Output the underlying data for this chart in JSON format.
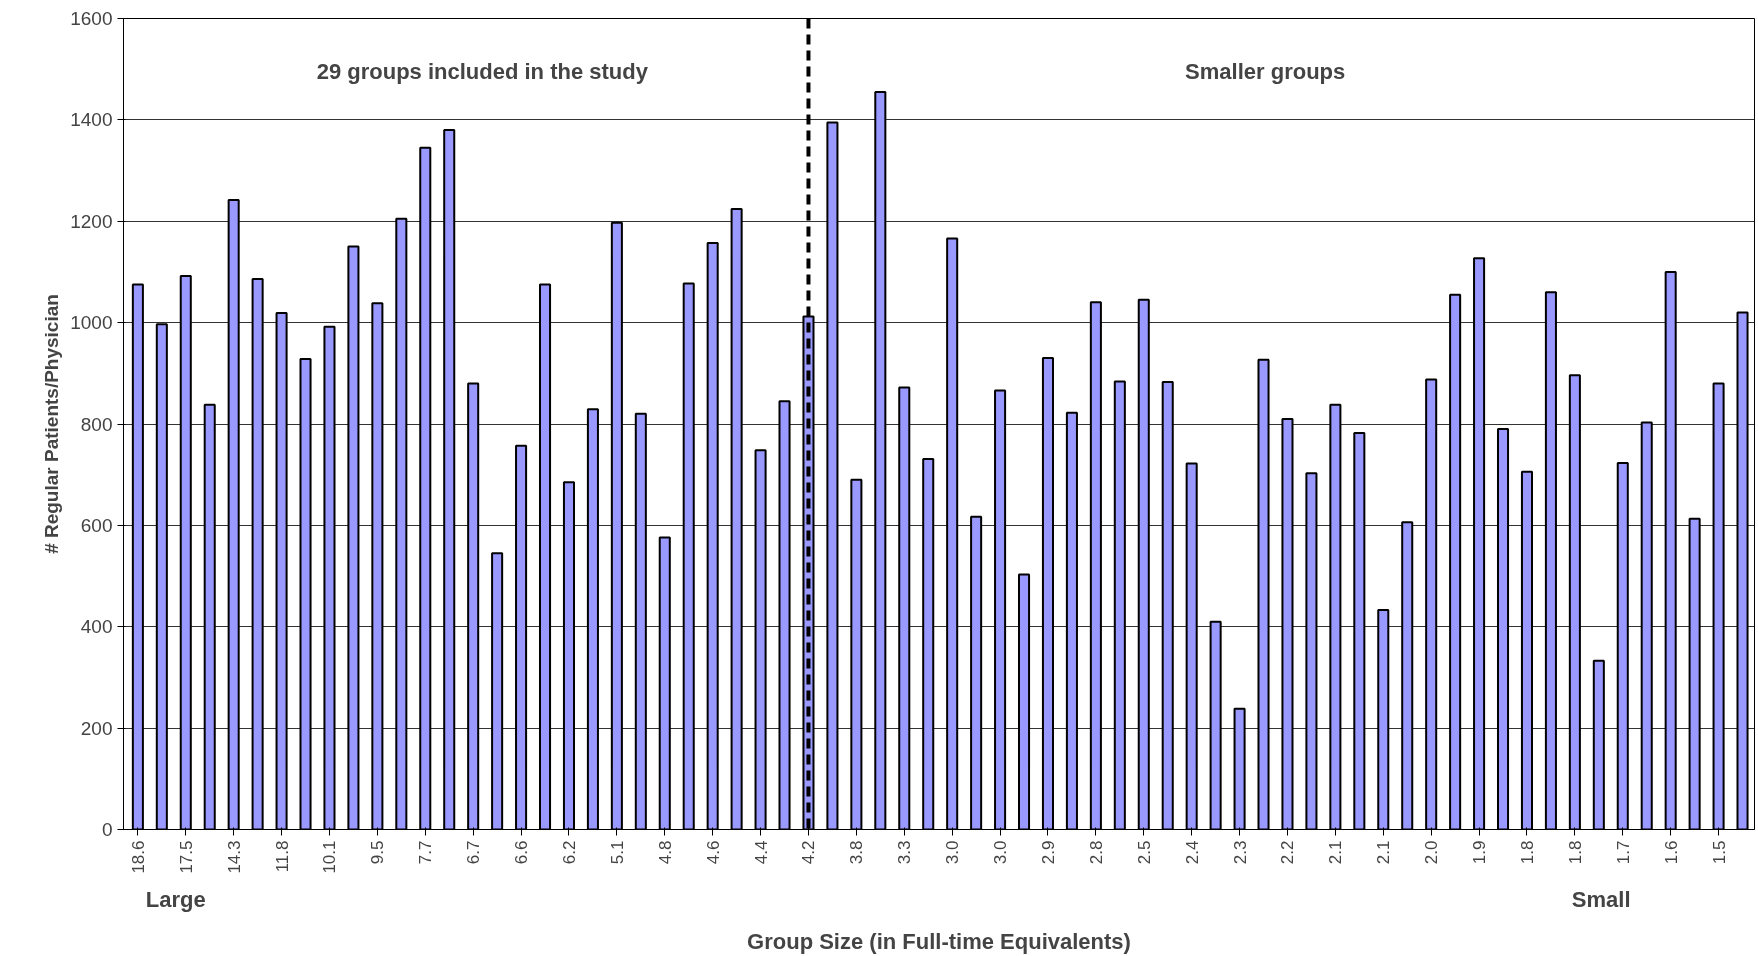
{
  "chart_data": {
    "type": "bar",
    "xlabel": "Group Size (in Full-time Equivalents)",
    "ylabel": "# Regular Patients/Physician",
    "categories": [
      "18.6",
      null,
      "17.5",
      null,
      "14.3",
      null,
      "11.8",
      null,
      "10.1",
      null,
      "9.5",
      null,
      "7.7",
      null,
      "6.7",
      null,
      "6.6",
      null,
      "6.2",
      null,
      "5.1",
      null,
      "4.8",
      null,
      "4.6",
      null,
      "4.4",
      null,
      "4.2",
      null,
      "3.8",
      null,
      "3.3",
      null,
      "3.0",
      null,
      "3.0",
      null,
      "2.9",
      null,
      "2.8",
      null,
      "2.5",
      null,
      "2.4",
      null,
      "2.3",
      null,
      "2.2",
      null,
      "2.1",
      null,
      "2.1",
      null,
      "2.0",
      null,
      "1.9",
      null,
      "1.8",
      null,
      "1.8",
      null,
      "1.7",
      null,
      "1.6",
      null,
      "1.5",
      null
    ],
    "values": [
      1075,
      997,
      1092,
      838,
      1242,
      1086,
      1019,
      928,
      992,
      1150,
      1038,
      1205,
      1345,
      1380,
      880,
      545,
      757,
      1075,
      685,
      829,
      1197,
      820,
      576,
      1077,
      1157,
      1224,
      748,
      845,
      1012,
      1395,
      690,
      1455,
      872,
      731,
      1166,
      617,
      866,
      503,
      930,
      822,
      1040,
      884,
      1045,
      883,
      722,
      410,
      238,
      927,
      810,
      703,
      838,
      782,
      433,
      606,
      888,
      1055,
      1127,
      790,
      706,
      1060,
      896,
      333,
      723,
      803,
      1100,
      613,
      880,
      1020
    ],
    "color": "#9999ff",
    "ylim": [
      0,
      1600
    ],
    "yticks": [
      0,
      200,
      400,
      600,
      800,
      1000,
      1200,
      1400,
      1600
    ],
    "grid": "y",
    "ref_lines": [
      {
        "axis": "x",
        "value": "4.2",
        "line_style": "dashed",
        "color": "#000000"
      }
    ],
    "annotations": [
      "29 groups included in the study",
      "Smaller groups",
      "Large",
      "Small"
    ]
  }
}
